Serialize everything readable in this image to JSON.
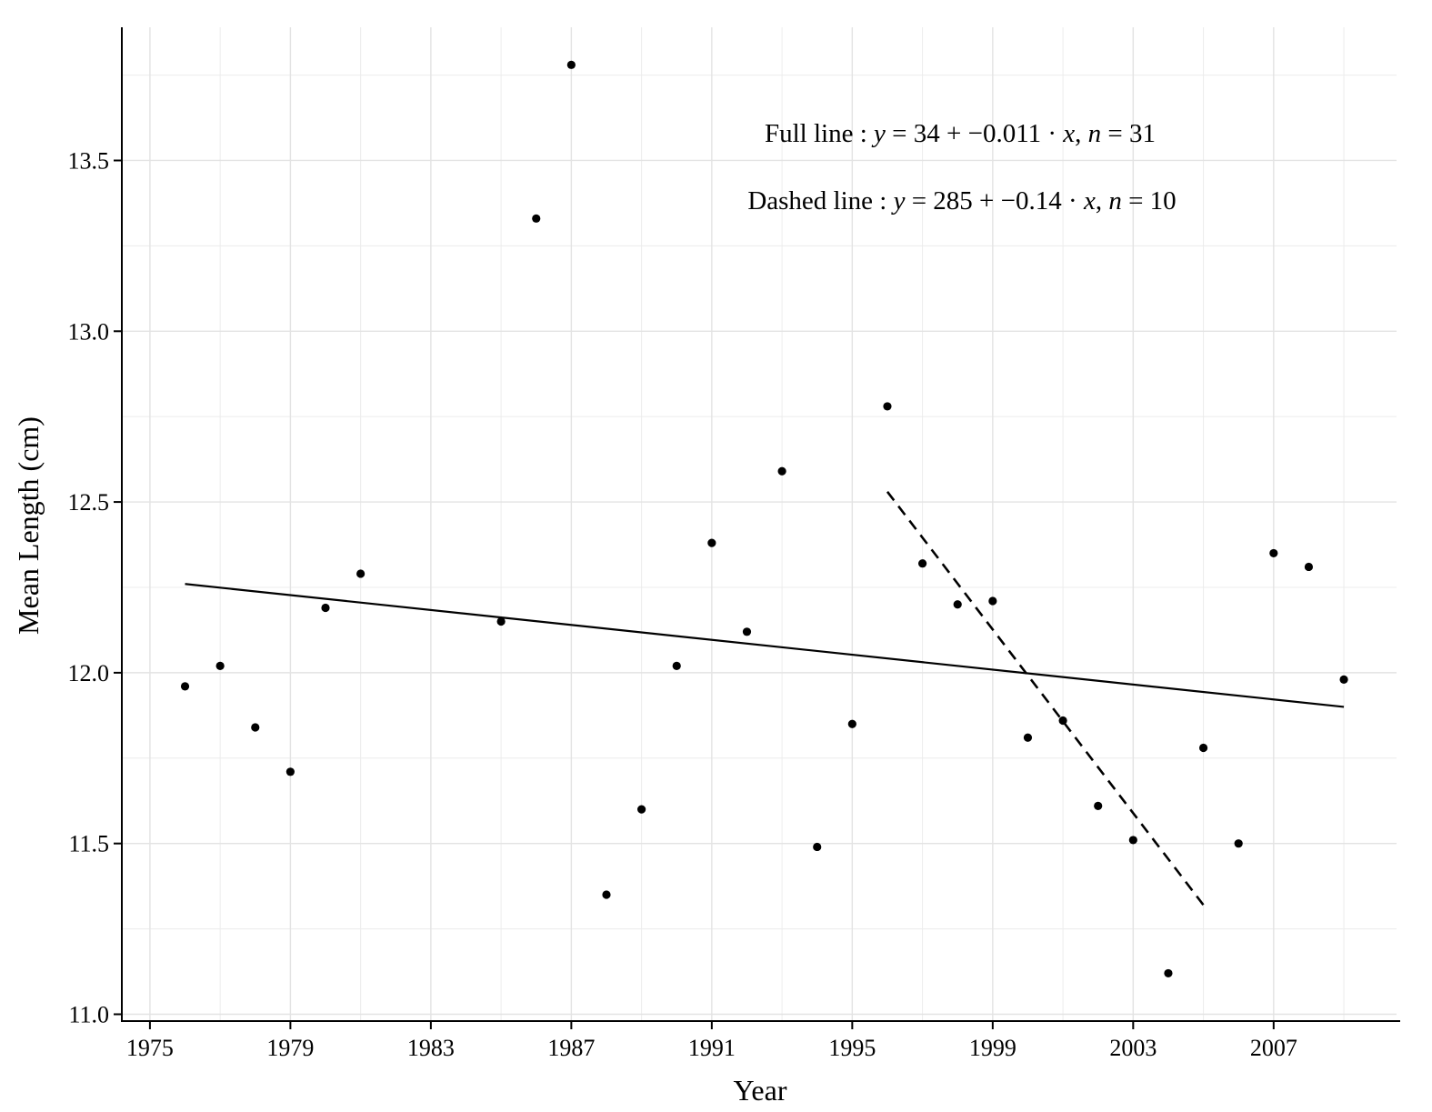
{
  "chart_data": {
    "type": "scatter",
    "xlabel": "Year",
    "ylabel": "Mean Length (cm)",
    "xlim": [
      1974.2,
      2010.5
    ],
    "ylim": [
      10.98,
      13.89
    ],
    "x_ticks": [
      1975,
      1979,
      1983,
      1987,
      1991,
      1995,
      1999,
      2003,
      2007
    ],
    "y_ticks": [
      11.0,
      11.5,
      12.0,
      12.5,
      13.0,
      13.5
    ],
    "y_tick_labels": [
      "11.0",
      "11.5",
      "12.0",
      "12.5",
      "13.0",
      "13.5"
    ],
    "grid": true,
    "points": [
      {
        "x": 1976,
        "y": 11.96
      },
      {
        "x": 1977,
        "y": 12.02
      },
      {
        "x": 1978,
        "y": 11.84
      },
      {
        "x": 1979,
        "y": 11.71
      },
      {
        "x": 1980,
        "y": 12.19
      },
      {
        "x": 1981,
        "y": 12.29
      },
      {
        "x": 1985,
        "y": 12.15
      },
      {
        "x": 1986,
        "y": 13.33
      },
      {
        "x": 1987,
        "y": 13.78
      },
      {
        "x": 1988,
        "y": 11.35
      },
      {
        "x": 1989,
        "y": 11.6
      },
      {
        "x": 1990,
        "y": 12.02
      },
      {
        "x": 1991,
        "y": 12.38
      },
      {
        "x": 1992,
        "y": 12.12
      },
      {
        "x": 1993,
        "y": 12.59
      },
      {
        "x": 1994,
        "y": 11.49
      },
      {
        "x": 1995,
        "y": 11.85
      },
      {
        "x": 1996,
        "y": 12.78
      },
      {
        "x": 1997,
        "y": 12.32
      },
      {
        "x": 1998,
        "y": 12.2
      },
      {
        "x": 1999,
        "y": 12.21
      },
      {
        "x": 2000,
        "y": 11.81
      },
      {
        "x": 2001,
        "y": 11.86
      },
      {
        "x": 2002,
        "y": 11.61
      },
      {
        "x": 2003,
        "y": 11.51
      },
      {
        "x": 2004,
        "y": 11.12
      },
      {
        "x": 2005,
        "y": 11.78
      },
      {
        "x": 2006,
        "y": 11.5
      },
      {
        "x": 2007,
        "y": 12.35
      },
      {
        "x": 2008,
        "y": 12.31
      },
      {
        "x": 2009,
        "y": 11.98
      }
    ],
    "lines": [
      {
        "style": "solid",
        "x": [
          1976,
          2009
        ],
        "y": [
          12.26,
          11.9
        ]
      },
      {
        "style": "dashed",
        "x": [
          1996,
          2005
        ],
        "y": [
          12.53,
          11.32
        ]
      }
    ],
    "annotations": {
      "full_line": {
        "prefix": "Full line : ",
        "y_var": "y",
        "eq_mid": " = 34 + −0.011 · ",
        "x_var": "x",
        "comma": ",  ",
        "n_var": "n",
        "n_eq": " = 31"
      },
      "dashed_line": {
        "prefix": "Dashed line : ",
        "y_var": "y",
        "eq_mid": " = 285 + −0.14 · ",
        "x_var": "x",
        "comma": ",  ",
        "n_var": "n",
        "n_eq": " = 10"
      }
    }
  }
}
